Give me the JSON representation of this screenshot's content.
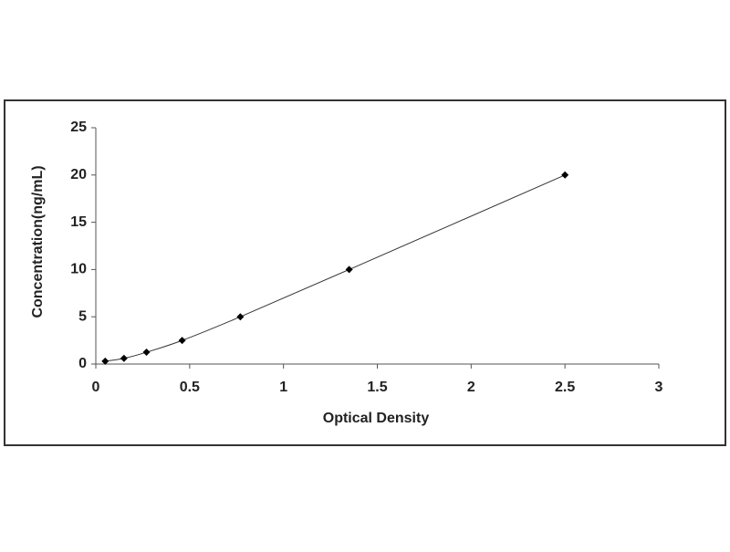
{
  "chart_data": {
    "type": "scatter",
    "x_label": "Optical Density",
    "y_label": "Concentration(ng/mL)",
    "series": [
      {
        "color": "#000000",
        "x": [
          0.05,
          0.15,
          0.27,
          0.46,
          0.77,
          1.35,
          2.5
        ],
        "values": [
          0.3,
          0.6,
          1.25,
          2.5,
          5,
          10,
          20
        ]
      }
    ],
    "line": true,
    "xlim": [
      0,
      3
    ],
    "xticks": [
      0,
      0.5,
      1,
      1.5,
      2,
      2.5,
      3
    ],
    "ylim": [
      0,
      25
    ],
    "yticks": [
      0,
      5,
      10,
      15,
      20,
      25
    ]
  }
}
